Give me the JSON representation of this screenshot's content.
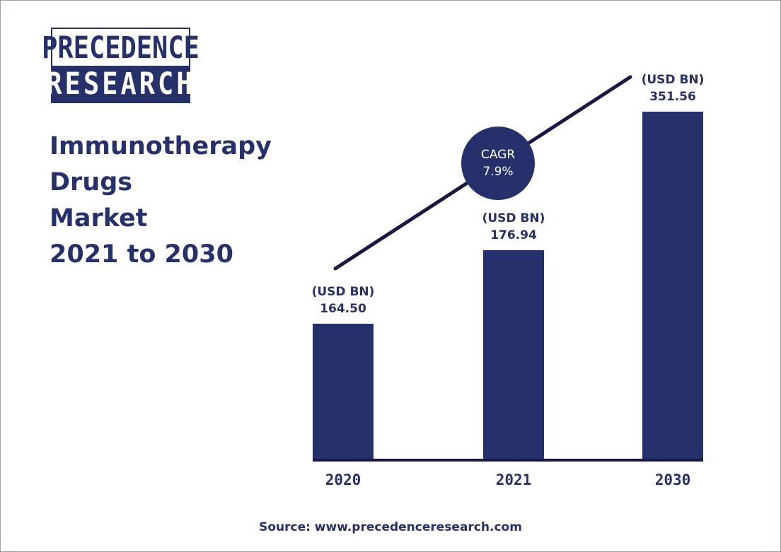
{
  "logo": {
    "line1": "PRECEDENCE",
    "line2": "RESEARCH"
  },
  "title": {
    "line1": "Immunotherapy",
    "line2": "Drugs",
    "line3": "Market",
    "line4": "2021 to 2030"
  },
  "cagr": {
    "label": "CAGR",
    "value": "7.9%"
  },
  "source": "Source: www.precedenceresearch.com",
  "colors": {
    "primary": "#26306a",
    "trend_line": "#1b1745",
    "background": "#ffffff"
  },
  "chart_data": {
    "type": "bar",
    "categories": [
      "2020",
      "2021",
      "2030"
    ],
    "values": [
      164.5,
      176.94,
      351.56
    ],
    "data_labels": [
      "164.50",
      "176.94",
      "351.56"
    ],
    "unit_label": "(USD BN)",
    "title": "Immunotherapy Drugs Market 2021 to 2030",
    "xlabel": "",
    "ylabel": "",
    "grid": false,
    "legend": "none"
  }
}
